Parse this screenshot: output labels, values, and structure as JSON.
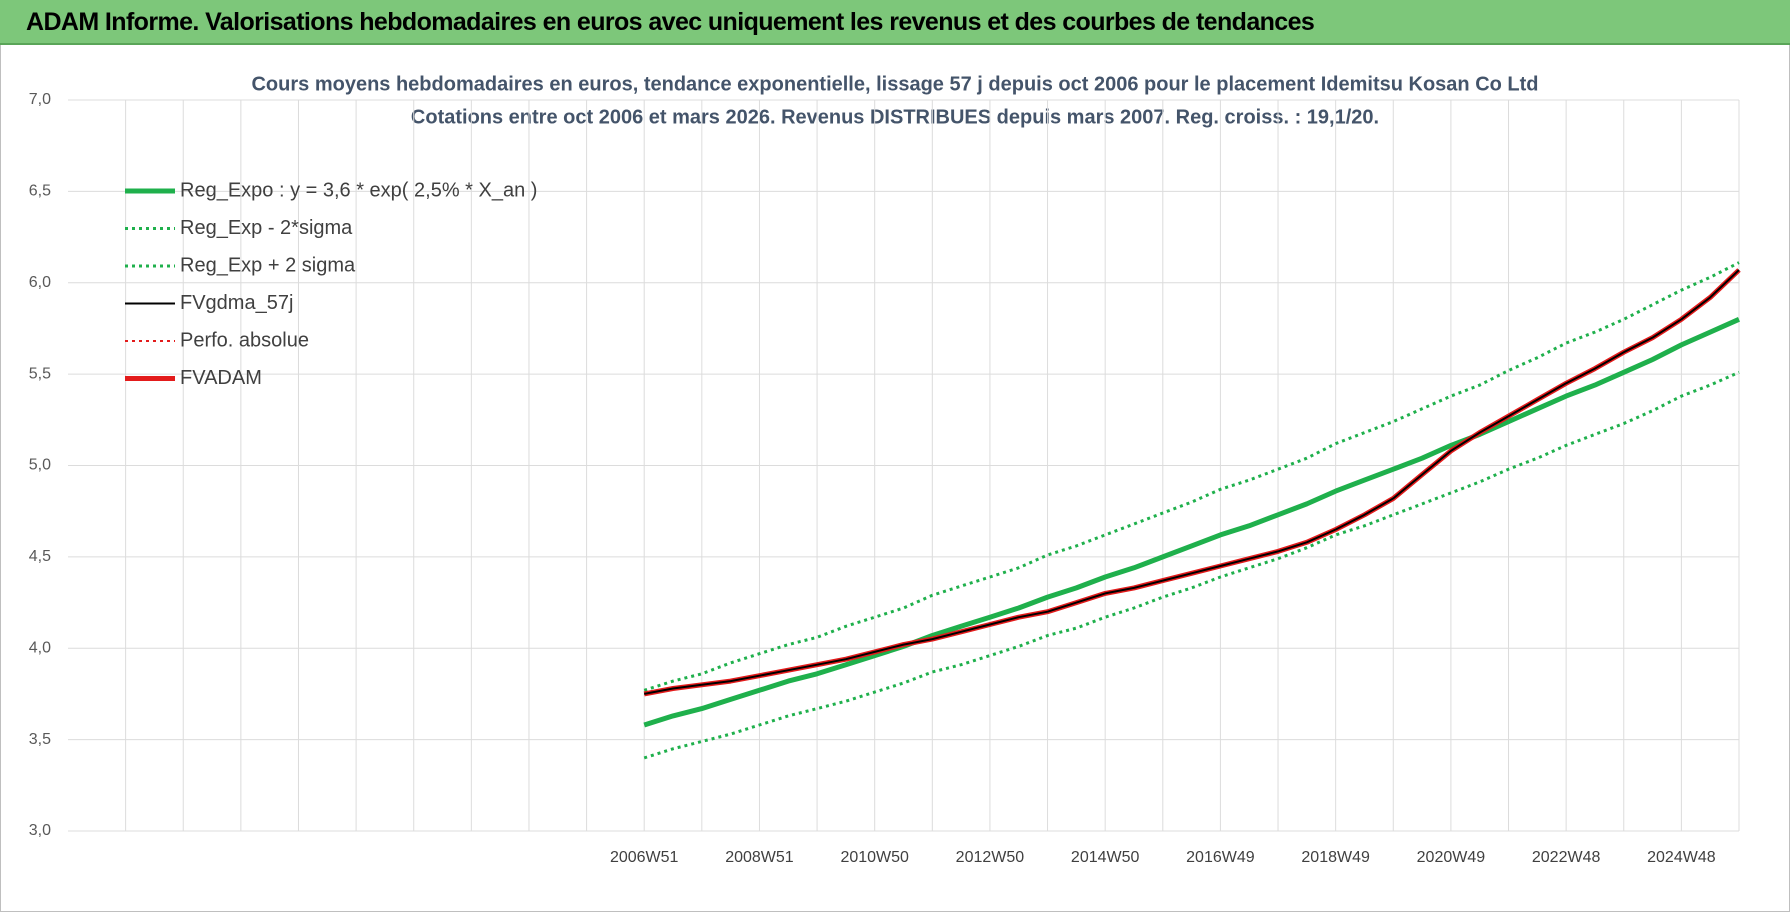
{
  "header": {
    "title": "ADAM Informe. Valorisations hebdomadaires en euros avec uniquement les revenus et des courbes de tendances"
  },
  "chart_data": {
    "type": "line",
    "title": "Cours moyens hebdomadaires en euros, tendance exponentielle, lissage 57 j depuis oct 2006 pour le placement Idemitsu Kosan Co Ltd",
    "subtitle": "Cotations entre oct 2006 et mars 2026. Revenus DISTRIBUES depuis mars 2007. Reg. croiss. : 19,1/20.",
    "categories": [
      null,
      null,
      null,
      null,
      null,
      null,
      null,
      null,
      null,
      null,
      null,
      null,
      null,
      null,
      null,
      null,
      null,
      null,
      null,
      null,
      "2006W51",
      null,
      null,
      null,
      "2008W51",
      null,
      null,
      null,
      "2010W50",
      null,
      null,
      null,
      "2012W50",
      null,
      null,
      null,
      "2014W50",
      null,
      null,
      null,
      "2016W49",
      null,
      null,
      null,
      "2018W49",
      null,
      null,
      null,
      "2020W49",
      null,
      null,
      null,
      "2022W48",
      null,
      null,
      null,
      "2024W48",
      null,
      null
    ],
    "ylim": [
      3.0,
      7.0
    ],
    "yticks": [
      {
        "value": 3.0,
        "label": "3,0"
      },
      {
        "value": 3.5,
        "label": "3,5"
      },
      {
        "value": 4.0,
        "label": "4,0"
      },
      {
        "value": 4.5,
        "label": "4,5"
      },
      {
        "value": 5.0,
        "label": "5,0"
      },
      {
        "value": 5.5,
        "label": "5,5"
      },
      {
        "value": 6.0,
        "label": "6,0"
      },
      {
        "value": 6.5,
        "label": "6,5"
      },
      {
        "value": 7.0,
        "label": "7,0"
      }
    ],
    "grid": true,
    "legend": "top-left",
    "series": [
      {
        "name": "Reg_Expo : y = 3,6 * exp( 2,5% *  X_an )",
        "color": "#1fb04c",
        "line_style": "solid",
        "line_width": 5,
        "values": [
          null,
          null,
          null,
          null,
          null,
          null,
          null,
          null,
          null,
          null,
          null,
          null,
          null,
          null,
          null,
          null,
          null,
          null,
          null,
          null,
          3.58,
          3.63,
          3.67,
          3.72,
          3.77,
          3.82,
          3.86,
          3.91,
          3.96,
          4.01,
          4.07,
          4.12,
          4.17,
          4.22,
          4.28,
          4.33,
          4.39,
          4.44,
          4.5,
          4.56,
          4.62,
          4.67,
          4.73,
          4.79,
          4.86,
          4.92,
          4.98,
          5.04,
          5.11,
          5.17,
          5.24,
          5.31,
          5.38,
          5.44,
          5.51,
          5.58,
          5.66,
          5.73,
          5.8
        ]
      },
      {
        "name": "Reg_Exp - 2*sigma",
        "color": "#1fb04c",
        "line_style": "dotted",
        "line_width": 3,
        "values": [
          null,
          null,
          null,
          null,
          null,
          null,
          null,
          null,
          null,
          null,
          null,
          null,
          null,
          null,
          null,
          null,
          null,
          null,
          null,
          null,
          3.4,
          3.45,
          3.49,
          3.53,
          3.58,
          3.63,
          3.67,
          3.71,
          3.76,
          3.81,
          3.87,
          3.91,
          3.96,
          4.01,
          4.07,
          4.11,
          4.17,
          4.22,
          4.28,
          4.33,
          4.39,
          4.44,
          4.49,
          4.55,
          4.62,
          4.67,
          4.73,
          4.79,
          4.85,
          4.91,
          4.98,
          5.04,
          5.11,
          5.17,
          5.23,
          5.3,
          5.38,
          5.44,
          5.51
        ]
      },
      {
        "name": "Reg_Exp + 2 sigma",
        "color": "#1fb04c",
        "line_style": "dotted",
        "line_width": 3,
        "values": [
          null,
          null,
          null,
          null,
          null,
          null,
          null,
          null,
          null,
          null,
          null,
          null,
          null,
          null,
          null,
          null,
          null,
          null,
          null,
          null,
          3.77,
          3.82,
          3.86,
          3.92,
          3.97,
          4.02,
          4.06,
          4.12,
          4.17,
          4.22,
          4.29,
          4.34,
          4.39,
          4.44,
          4.51,
          4.56,
          4.62,
          4.68,
          4.74,
          4.8,
          4.87,
          4.92,
          4.98,
          5.04,
          5.12,
          5.18,
          5.24,
          5.31,
          5.38,
          5.44,
          5.52,
          5.59,
          5.67,
          5.73,
          5.8,
          5.88,
          5.96,
          6.03,
          6.11
        ]
      },
      {
        "name": "FVgdma_57j",
        "color": "#000000",
        "line_style": "solid",
        "line_width": 2,
        "values": [
          null,
          null,
          null,
          null,
          null,
          null,
          null,
          null,
          null,
          null,
          null,
          null,
          null,
          null,
          null,
          null,
          null,
          null,
          null,
          null,
          3.75,
          3.78,
          3.8,
          3.82,
          3.85,
          3.88,
          3.91,
          3.94,
          3.98,
          4.02,
          4.05,
          4.09,
          4.13,
          4.17,
          4.2,
          4.25,
          4.3,
          4.33,
          4.37,
          4.41,
          4.45,
          4.49,
          4.53,
          4.58,
          4.65,
          4.73,
          4.82,
          4.95,
          5.08,
          5.18,
          5.27,
          5.36,
          5.45,
          5.53,
          5.62,
          5.7,
          5.8,
          5.92,
          6.07
        ]
      },
      {
        "name": "Perfo. absolue",
        "color": "#e31b1b",
        "line_style": "dotted",
        "line_width": 2,
        "values": [
          null,
          null,
          null,
          null,
          null,
          null,
          null,
          null,
          null,
          null,
          null,
          null,
          null,
          null,
          null,
          null,
          null,
          null,
          null,
          null,
          3.75,
          3.78,
          3.8,
          3.82,
          3.85,
          3.88,
          3.91,
          3.94,
          3.98,
          4.02,
          4.05,
          4.09,
          4.13,
          4.17,
          4.2,
          4.25,
          4.3,
          4.33,
          4.37,
          4.41,
          4.45,
          4.49,
          4.53,
          4.58,
          4.65,
          4.73,
          4.82,
          4.95,
          5.08,
          5.18,
          5.27,
          5.36,
          5.45,
          5.53,
          5.62,
          5.7,
          5.8,
          5.92,
          6.07
        ]
      },
      {
        "name": "FVADAM",
        "color": "#e31b1b",
        "line_style": "solid",
        "line_width": 5,
        "values": [
          null,
          null,
          null,
          null,
          null,
          null,
          null,
          null,
          null,
          null,
          null,
          null,
          null,
          null,
          null,
          null,
          null,
          null,
          null,
          null,
          3.75,
          3.78,
          3.8,
          3.82,
          3.85,
          3.88,
          3.91,
          3.94,
          3.98,
          4.02,
          4.05,
          4.09,
          4.13,
          4.17,
          4.2,
          4.25,
          4.3,
          4.33,
          4.37,
          4.41,
          4.45,
          4.49,
          4.53,
          4.58,
          4.65,
          4.73,
          4.82,
          4.95,
          5.08,
          5.18,
          5.27,
          5.36,
          5.45,
          5.53,
          5.62,
          5.7,
          5.8,
          5.92,
          6.07
        ]
      }
    ]
  }
}
